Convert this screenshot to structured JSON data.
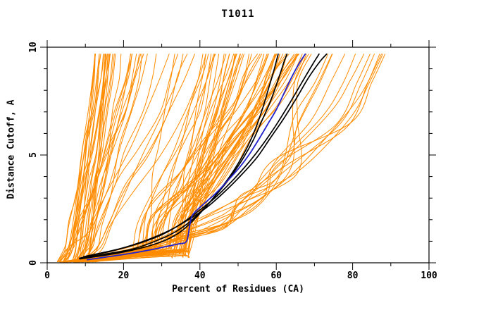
{
  "chart_data": {
    "type": "line",
    "title": "T1011",
    "grid": false,
    "legend": "none",
    "x_axis": {
      "label": "Percent of Residues (CA)",
      "range": [
        0,
        100
      ],
      "major_ticks": [
        0,
        20,
        40,
        60,
        80,
        100
      ],
      "minor_ticks": [
        10,
        30,
        50,
        70,
        90
      ]
    },
    "y_axis": {
      "label": "Distance Cutoff, A",
      "range": [
        0,
        10
      ],
      "major_ticks": [
        0,
        5,
        10
      ],
      "minor_ticks": [
        1,
        2,
        3,
        4,
        6,
        7,
        8,
        9
      ],
      "tick_labels_rotated": true
    },
    "colors": {
      "ensemble": "#ff8c00",
      "reference": "#000000",
      "highlight": "#2222cc",
      "frame": "#000000",
      "text": "#000000"
    },
    "curve_top_y": 9.68,
    "series": [
      {
        "name": "model-black-1",
        "color": "reference",
        "width": 1.7,
        "points": [
          [
            8.5,
            0.18
          ],
          [
            14,
            0.32
          ],
          [
            20,
            0.5
          ],
          [
            26,
            0.75
          ],
          [
            31,
            1.05
          ],
          [
            35,
            1.45
          ],
          [
            39,
            2.1
          ],
          [
            43,
            2.9
          ],
          [
            47,
            3.8
          ],
          [
            50,
            4.6
          ],
          [
            52.5,
            5.4
          ],
          [
            54.5,
            6.2
          ],
          [
            56.5,
            7.2
          ],
          [
            58,
            8.1
          ],
          [
            59.5,
            9.0
          ],
          [
            60.5,
            9.68
          ]
        ]
      },
      {
        "name": "model-black-2",
        "color": "reference",
        "width": 1.7,
        "points": [
          [
            8.5,
            0.22
          ],
          [
            15,
            0.4
          ],
          [
            22,
            0.62
          ],
          [
            28,
            0.98
          ],
          [
            33,
            1.38
          ],
          [
            37,
            1.85
          ],
          [
            41,
            2.5
          ],
          [
            45,
            3.3
          ],
          [
            48.5,
            4.1
          ],
          [
            51.5,
            4.9
          ],
          [
            54,
            5.7
          ],
          [
            56,
            6.5
          ],
          [
            58.5,
            7.5
          ],
          [
            60.5,
            8.5
          ],
          [
            62,
            9.3
          ],
          [
            62.8,
            9.68
          ]
        ]
      },
      {
        "name": "model-black-3",
        "color": "reference",
        "width": 1.7,
        "points": [
          [
            9.5,
            0.28
          ],
          [
            17,
            0.55
          ],
          [
            24,
            0.9
          ],
          [
            30,
            1.3
          ],
          [
            35,
            1.8
          ],
          [
            40,
            2.45
          ],
          [
            44.5,
            3.1
          ],
          [
            49,
            3.9
          ],
          [
            53,
            4.7
          ],
          [
            56.5,
            5.5
          ],
          [
            60,
            6.4
          ],
          [
            63.5,
            7.4
          ],
          [
            66.5,
            8.3
          ],
          [
            69.5,
            9.2
          ],
          [
            71.2,
            9.68
          ]
        ]
      },
      {
        "name": "model-black-4",
        "color": "reference",
        "width": 1.7,
        "points": [
          [
            10.5,
            0.32
          ],
          [
            19,
            0.65
          ],
          [
            26,
            1.05
          ],
          [
            32,
            1.5
          ],
          [
            37,
            2.0
          ],
          [
            42,
            2.6
          ],
          [
            46.5,
            3.3
          ],
          [
            51,
            4.1
          ],
          [
            55,
            4.9
          ],
          [
            58.5,
            5.8
          ],
          [
            62,
            6.7
          ],
          [
            65.5,
            7.7
          ],
          [
            68.5,
            8.6
          ],
          [
            71.5,
            9.35
          ],
          [
            73.2,
            9.68
          ]
        ]
      },
      {
        "name": "model-blue",
        "color": "highlight",
        "width": 1.8,
        "points": [
          [
            10.5,
            0.14
          ],
          [
            16,
            0.28
          ],
          [
            22,
            0.44
          ],
          [
            27,
            0.6
          ],
          [
            31,
            0.75
          ],
          [
            34.5,
            0.88
          ],
          [
            36.5,
            1.0
          ],
          [
            37.3,
            1.7
          ],
          [
            38,
            2.2
          ],
          [
            40.5,
            2.65
          ],
          [
            44,
            3.2
          ],
          [
            47.5,
            3.85
          ],
          [
            50.5,
            4.45
          ],
          [
            53,
            5.05
          ],
          [
            55.5,
            5.75
          ],
          [
            58,
            6.5
          ],
          [
            60,
            7.1
          ],
          [
            62,
            7.85
          ],
          [
            64,
            8.6
          ],
          [
            66,
            9.25
          ],
          [
            67.6,
            9.68
          ]
        ]
      }
    ],
    "ensemble": {
      "name": "server-models-orange",
      "color": "ensemble",
      "width": 1,
      "seed": 1011,
      "groups": [
        {
          "type": "steep-left",
          "count": 40,
          "x_start": [
            2.5,
            11.0
          ],
          "top_end": [
            12.5,
            42.0
          ]
        },
        {
          "type": "mid-s",
          "count": 52,
          "x_start": [
            3.0,
            11.0
          ],
          "knee_x": [
            20.0,
            37.2
          ],
          "knee_y": [
            0.35,
            0.85
          ],
          "top_end": [
            30.0,
            68.0
          ]
        },
        {
          "type": "right-shallow",
          "count": 14,
          "x_start": [
            4.0,
            13.0
          ],
          "top_end": [
            68.0,
            89.0
          ]
        }
      ]
    }
  }
}
